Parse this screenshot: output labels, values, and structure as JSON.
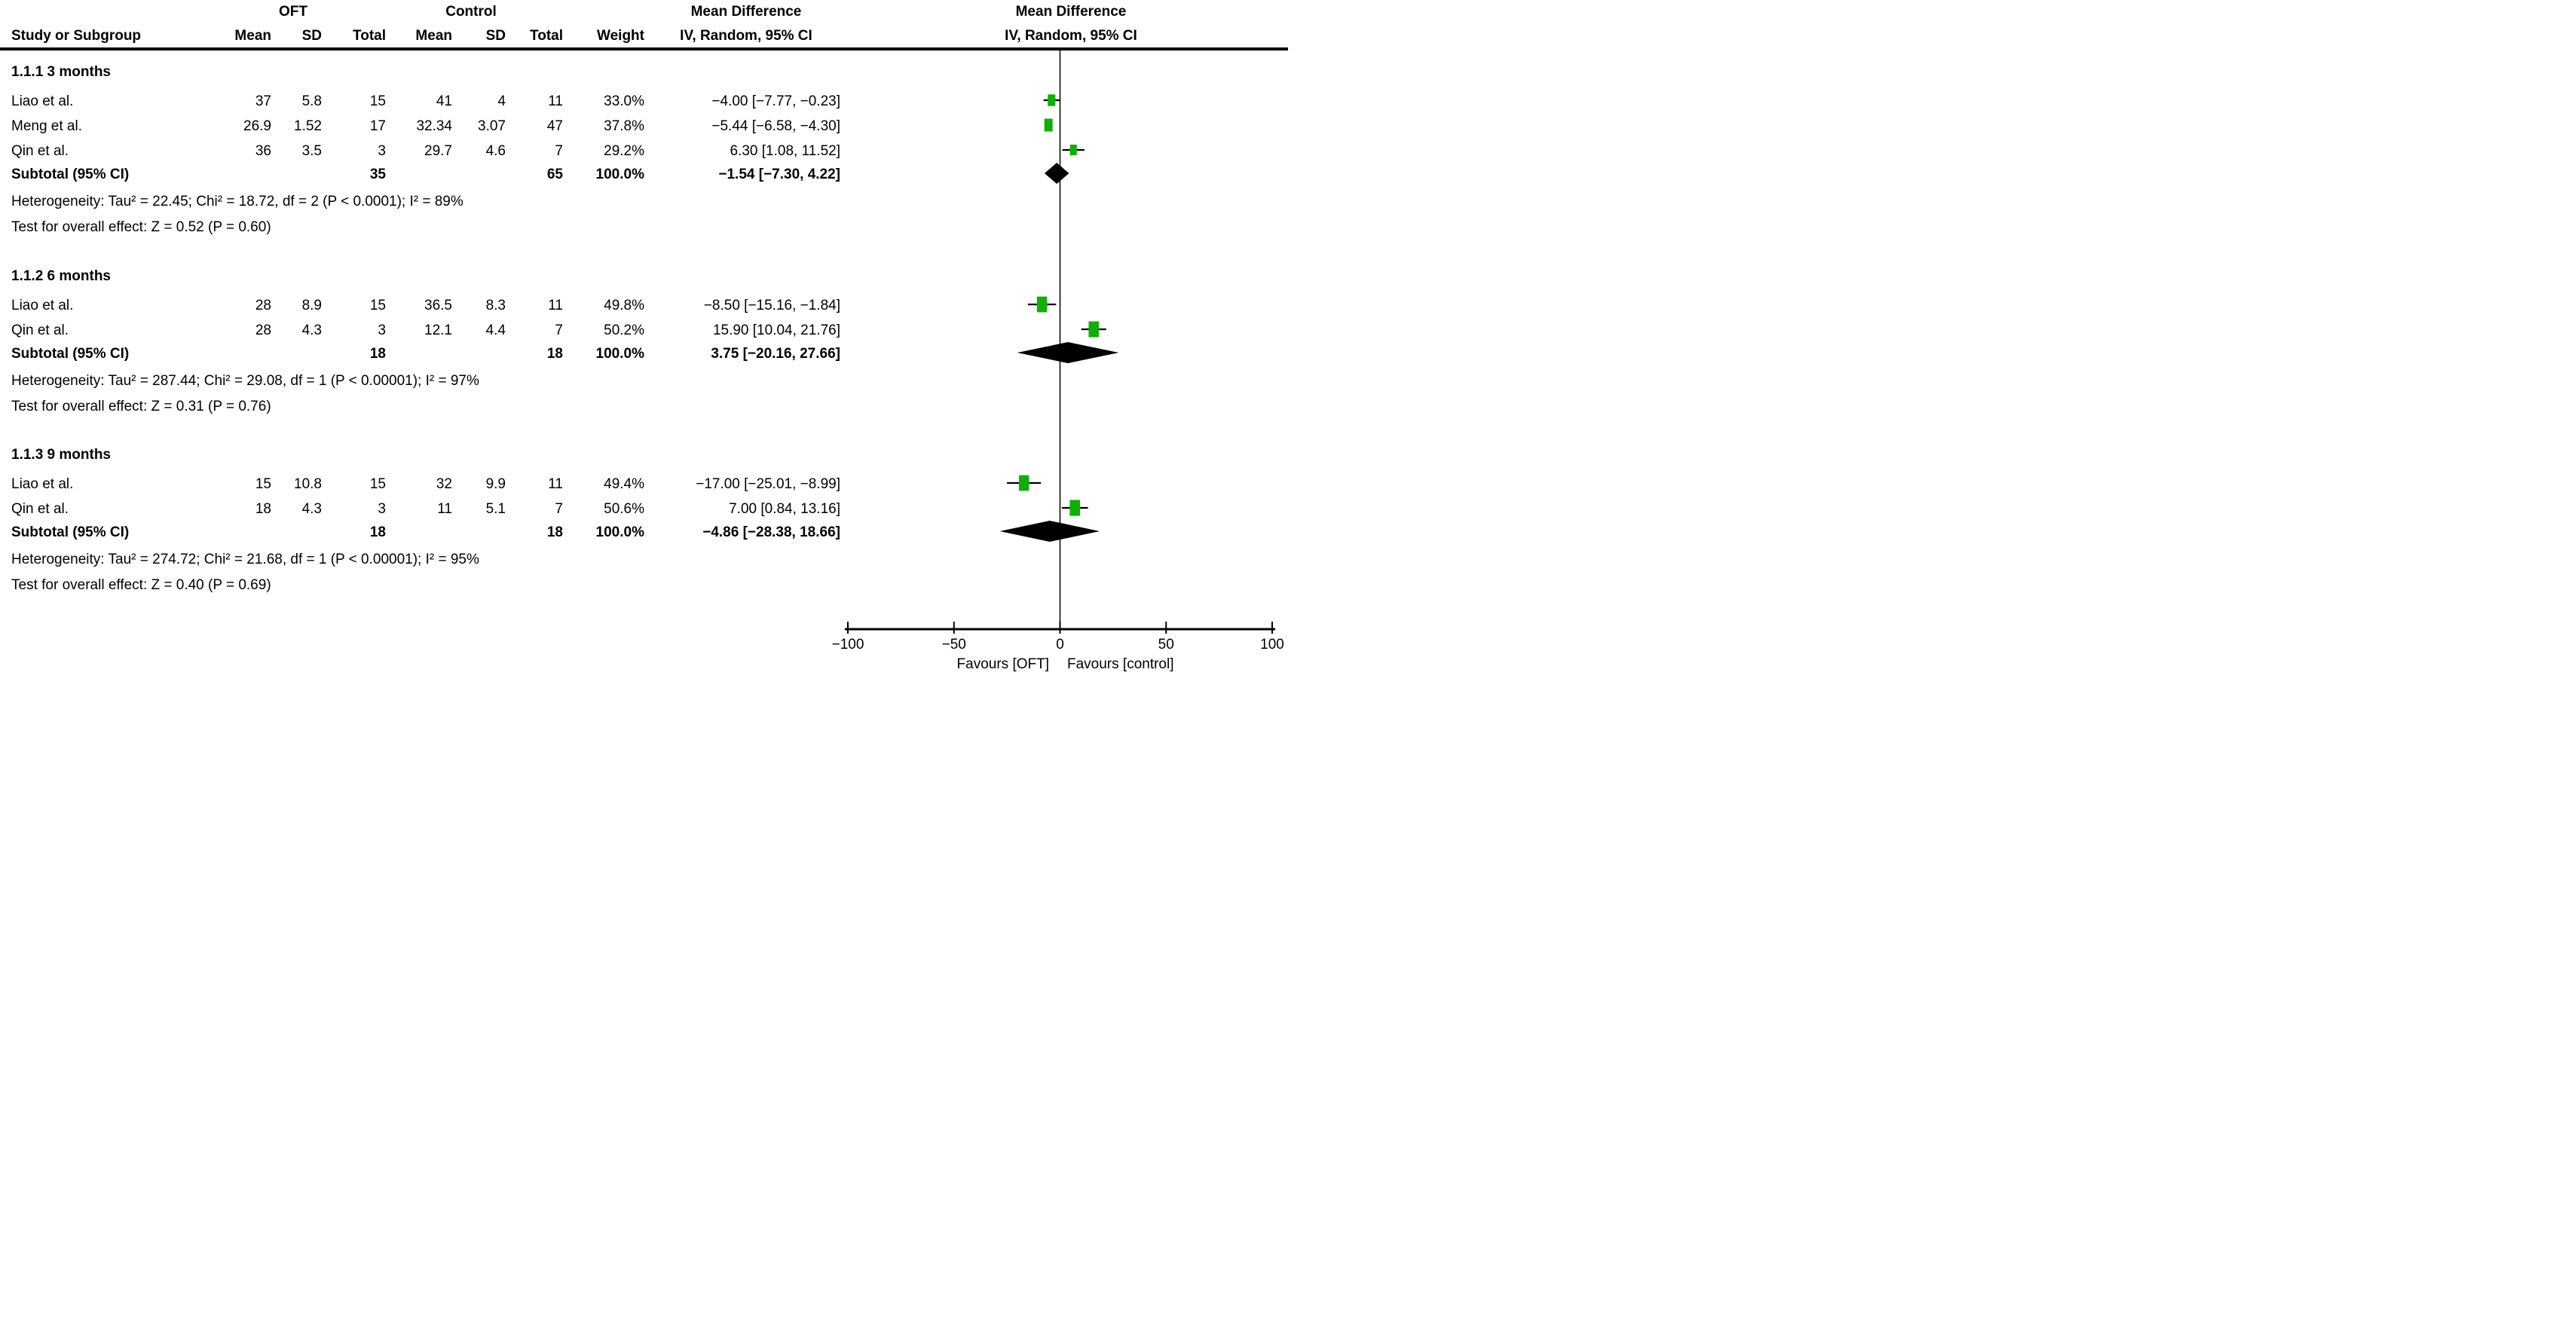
{
  "colors": {
    "square": "#0faf08",
    "diamond": "#000000",
    "line": "#000000",
    "text": "#000000",
    "background": "#ffffff"
  },
  "table": {
    "group_headers": {
      "oft": "OFT",
      "control": "Control"
    },
    "effect_header": "Mean Difference",
    "effect_subheader": "IV, Random, 95% CI",
    "columns": [
      "Study or Subgroup",
      "Mean",
      "SD",
      "Total",
      "Mean",
      "SD",
      "Total",
      "Weight"
    ]
  },
  "chart_data": {
    "type": "forest",
    "effect_measure": "Mean Difference",
    "model": "IV, Random, 95% CI",
    "xlim": [
      -100,
      100
    ],
    "x_ticks": [
      -100,
      -50,
      0,
      50,
      100
    ],
    "x_tick_labels": [
      "−100",
      "−50",
      "0",
      "50",
      "100"
    ],
    "zero_line": 0,
    "favours": {
      "left": "Favours [OFT]",
      "right": "Favours [control]"
    },
    "subgroups": [
      {
        "label": "1.1.1 3 months",
        "studies": [
          {
            "name": "Liao et al.",
            "oft_mean": "37",
            "oft_sd": "5.8",
            "oft_total": "15",
            "ctrl_mean": "41",
            "ctrl_sd": "4",
            "ctrl_total": "11",
            "weight": "33.0%",
            "weight_value": 33.0,
            "md": -4.0,
            "ci_low": -7.77,
            "ci_high": -0.23,
            "ci_text": "−4.00 [−7.77, −0.23]"
          },
          {
            "name": "Meng et al.",
            "oft_mean": "26.9",
            "oft_sd": "1.52",
            "oft_total": "17",
            "ctrl_mean": "32.34",
            "ctrl_sd": "3.07",
            "ctrl_total": "47",
            "weight": "37.8%",
            "weight_value": 37.8,
            "md": -5.44,
            "ci_low": -6.58,
            "ci_high": -4.3,
            "ci_text": "−5.44 [−6.58, −4.30]"
          },
          {
            "name": "Qin et al.",
            "oft_mean": "36",
            "oft_sd": "3.5",
            "oft_total": "3",
            "ctrl_mean": "29.7",
            "ctrl_sd": "4.6",
            "ctrl_total": "7",
            "weight": "29.2%",
            "weight_value": 29.2,
            "md": 6.3,
            "ci_low": 1.08,
            "ci_high": 11.52,
            "ci_text": "6.30 [1.08, 11.52]"
          }
        ],
        "subtotal": {
          "label": "Subtotal (95% CI)",
          "oft_total": "35",
          "ctrl_total": "65",
          "weight": "100.0%",
          "md": -1.54,
          "ci_low": -7.3,
          "ci_high": 4.22,
          "ci_text": "−1.54 [−7.30, 4.22]"
        },
        "heterogeneity": "Heterogeneity: Tau² = 22.45; Chi² = 18.72, df = 2 (P < 0.0001); I² = 89%",
        "overall_effect": "Test for overall effect: Z = 0.52 (P = 0.60)"
      },
      {
        "label": "1.1.2 6 months",
        "studies": [
          {
            "name": "Liao et al.",
            "oft_mean": "28",
            "oft_sd": "8.9",
            "oft_total": "15",
            "ctrl_mean": "36.5",
            "ctrl_sd": "8.3",
            "ctrl_total": "11",
            "weight": "49.8%",
            "weight_value": 49.8,
            "md": -8.5,
            "ci_low": -15.16,
            "ci_high": -1.84,
            "ci_text": "−8.50 [−15.16, −1.84]"
          },
          {
            "name": "Qin et al.",
            "oft_mean": "28",
            "oft_sd": "4.3",
            "oft_total": "3",
            "ctrl_mean": "12.1",
            "ctrl_sd": "4.4",
            "ctrl_total": "7",
            "weight": "50.2%",
            "weight_value": 50.2,
            "md": 15.9,
            "ci_low": 10.04,
            "ci_high": 21.76,
            "ci_text": "15.90 [10.04, 21.76]"
          }
        ],
        "subtotal": {
          "label": "Subtotal (95% CI)",
          "oft_total": "18",
          "ctrl_total": "18",
          "weight": "100.0%",
          "md": 3.75,
          "ci_low": -20.16,
          "ci_high": 27.66,
          "ci_text": "3.75 [−20.16, 27.66]"
        },
        "heterogeneity": "Heterogeneity: Tau² = 287.44; Chi² = 29.08, df = 1 (P < 0.00001); I² = 97%",
        "overall_effect": "Test for overall effect: Z = 0.31 (P = 0.76)"
      },
      {
        "label": "1.1.3 9 months",
        "studies": [
          {
            "name": "Liao et al.",
            "oft_mean": "15",
            "oft_sd": "10.8",
            "oft_total": "15",
            "ctrl_mean": "32",
            "ctrl_sd": "9.9",
            "ctrl_total": "11",
            "weight": "49.4%",
            "weight_value": 49.4,
            "md": -17.0,
            "ci_low": -25.01,
            "ci_high": -8.99,
            "ci_text": "−17.00 [−25.01, −8.99]"
          },
          {
            "name": "Qin et al.",
            "oft_mean": "18",
            "oft_sd": "4.3",
            "oft_total": "3",
            "ctrl_mean": "11",
            "ctrl_sd": "5.1",
            "ctrl_total": "7",
            "weight": "50.6%",
            "weight_value": 50.6,
            "md": 7.0,
            "ci_low": 0.84,
            "ci_high": 13.16,
            "ci_text": "7.00 [0.84, 13.16]"
          }
        ],
        "subtotal": {
          "label": "Subtotal (95% CI)",
          "oft_total": "18",
          "ctrl_total": "18",
          "weight": "100.0%",
          "md": -4.86,
          "ci_low": -28.38,
          "ci_high": 18.66,
          "ci_text": "−4.86 [−28.38, 18.66]"
        },
        "heterogeneity": "Heterogeneity: Tau² = 274.72; Chi² = 21.68, df = 1 (P < 0.00001); I² = 95%",
        "overall_effect": "Test for overall effect: Z = 0.40 (P = 0.69)"
      }
    ]
  }
}
